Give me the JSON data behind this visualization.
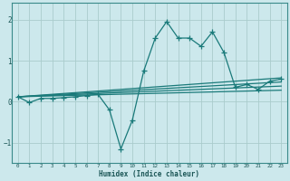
{
  "xlabel": "Humidex (Indice chaleur)",
  "ylabel": "",
  "bg_color": "#cce8ec",
  "grid_color": "#aacccc",
  "line_color": "#1a7a7a",
  "xlim": [
    -0.5,
    23.5
  ],
  "ylim": [
    -1.5,
    2.4
  ],
  "yticks": [
    -1,
    0,
    1,
    2
  ],
  "xticks": [
    0,
    1,
    2,
    3,
    4,
    5,
    6,
    7,
    8,
    9,
    10,
    11,
    12,
    13,
    14,
    15,
    16,
    17,
    18,
    19,
    20,
    21,
    22,
    23
  ],
  "series_main": {
    "x": [
      0,
      1,
      2,
      3,
      4,
      5,
      6,
      7,
      8,
      9,
      10,
      11,
      12,
      13,
      14,
      15,
      16,
      17,
      18,
      19,
      20,
      21,
      22,
      23
    ],
    "y": [
      0.12,
      -0.02,
      0.08,
      0.08,
      0.1,
      0.12,
      0.15,
      0.18,
      -0.2,
      -1.15,
      -0.45,
      0.75,
      1.55,
      1.95,
      1.55,
      1.55,
      1.35,
      1.7,
      1.2,
      0.35,
      0.42,
      0.3,
      0.5,
      0.55
    ]
  },
  "trend_lines": [
    {
      "x": [
        0,
        23
      ],
      "y": [
        0.12,
        0.58
      ]
    },
    {
      "x": [
        0,
        23
      ],
      "y": [
        0.12,
        0.38
      ]
    },
    {
      "x": [
        0,
        23
      ],
      "y": [
        0.12,
        0.48
      ]
    },
    {
      "x": [
        0,
        23
      ],
      "y": [
        0.12,
        0.28
      ]
    }
  ]
}
